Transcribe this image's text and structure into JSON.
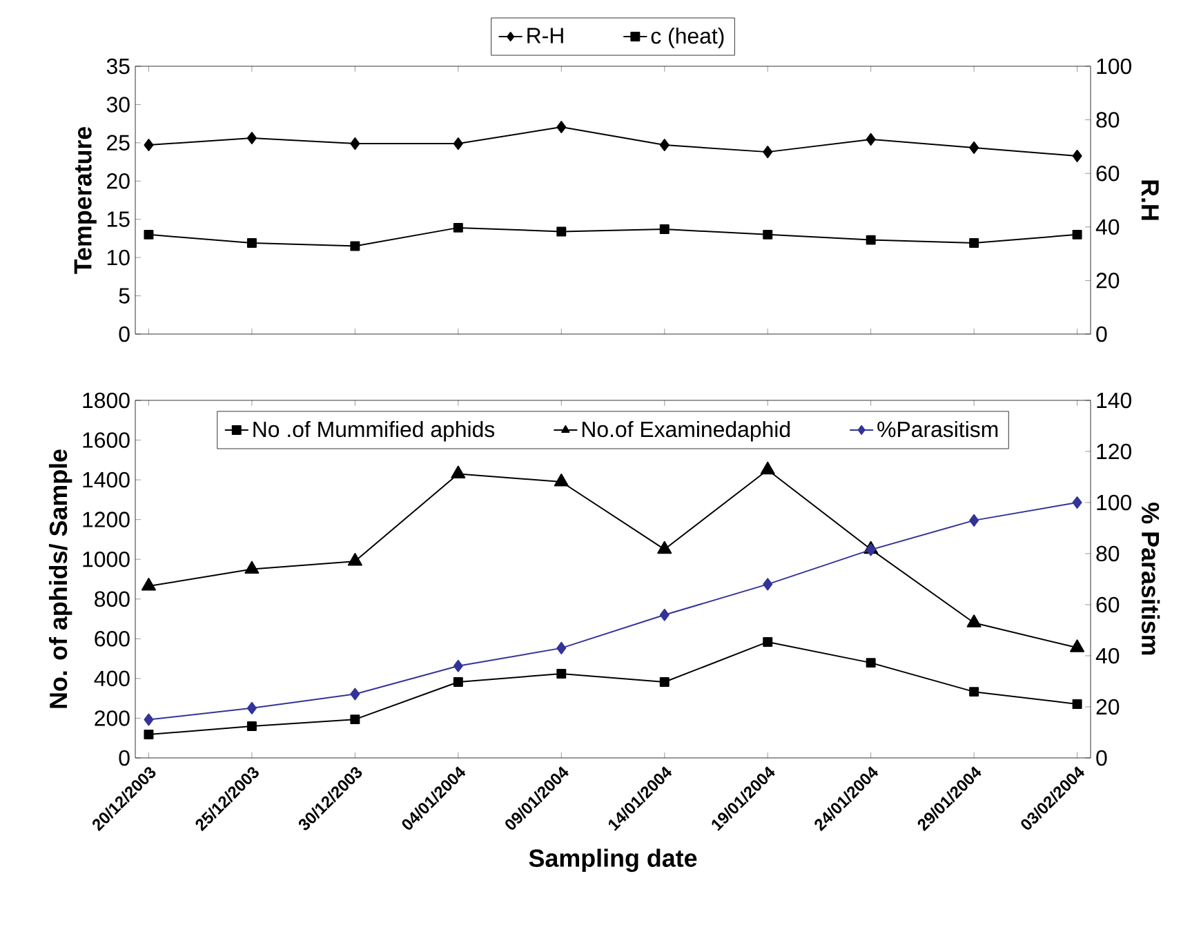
{
  "chart_data": [
    {
      "type": "line",
      "categories": [
        null,
        null,
        null,
        null,
        null,
        null,
        null,
        null,
        null,
        null
      ],
      "series": [
        {
          "name": "R-H",
          "color": "#000000",
          "marker": "diamond",
          "axis": "y2",
          "values": [
            70.6,
            73.2,
            71.1,
            71.1,
            77.3,
            70.6,
            68.0,
            72.7,
            69.6,
            66.5
          ]
        },
        {
          "name": "c  (heat)",
          "color": "#000000",
          "marker": "square",
          "values": [
            13.0,
            11.9,
            11.5,
            13.9,
            13.4,
            13.7,
            13.0,
            12.3,
            11.9,
            13.0
          ]
        }
      ],
      "ylabel": "Temperature",
      "y2label": "R.H",
      "ylim": [
        0,
        35
      ],
      "yticks": [
        0,
        5,
        10,
        15,
        20,
        25,
        30,
        35
      ],
      "y2lim": [
        0,
        100
      ],
      "y2ticks": [
        0,
        20,
        40,
        60,
        80,
        100
      ],
      "legend": "top",
      "tick_labels": "y"
    },
    {
      "type": "line",
      "categories": [
        "20/12/2003",
        "25/12/2003",
        "30/12/2003",
        "04/01/2004",
        "09/01/2004",
        "14/01/2004",
        "19/01/2004",
        "24/01/2004",
        "29/01/2004",
        "03/02/2004"
      ],
      "series": [
        {
          "name": "No .of Mummified aphids",
          "color": "#000000",
          "marker": "square",
          "values": [
            118,
            160,
            194,
            382,
            424,
            382,
            584,
            479,
            333,
            271
          ]
        },
        {
          "name": "No.of Examinedaphid",
          "color": "#000000",
          "marker": "triangle",
          "values": [
            865,
            950,
            990,
            1430,
            1390,
            1050,
            1450,
            1050,
            680,
            555
          ]
        },
        {
          "name": "%Parasitism",
          "color": "#333399",
          "marker": "diamond",
          "axis": "y2",
          "values": [
            15,
            19.5,
            25,
            36,
            43,
            56,
            68,
            81.5,
            93,
            100
          ]
        }
      ],
      "xlabel": "Sampling date",
      "ylabel": "No. of aphids/ Sample",
      "y2label": "% Parasitism",
      "ylim": [
        0,
        1800
      ],
      "yticks": [
        0,
        200,
        400,
        600,
        800,
        1000,
        1200,
        1400,
        1600,
        1800
      ],
      "y2lim": [
        0,
        140
      ],
      "y2ticks": [
        0,
        20,
        40,
        60,
        80,
        100,
        120,
        140
      ],
      "legend": "top"
    }
  ]
}
